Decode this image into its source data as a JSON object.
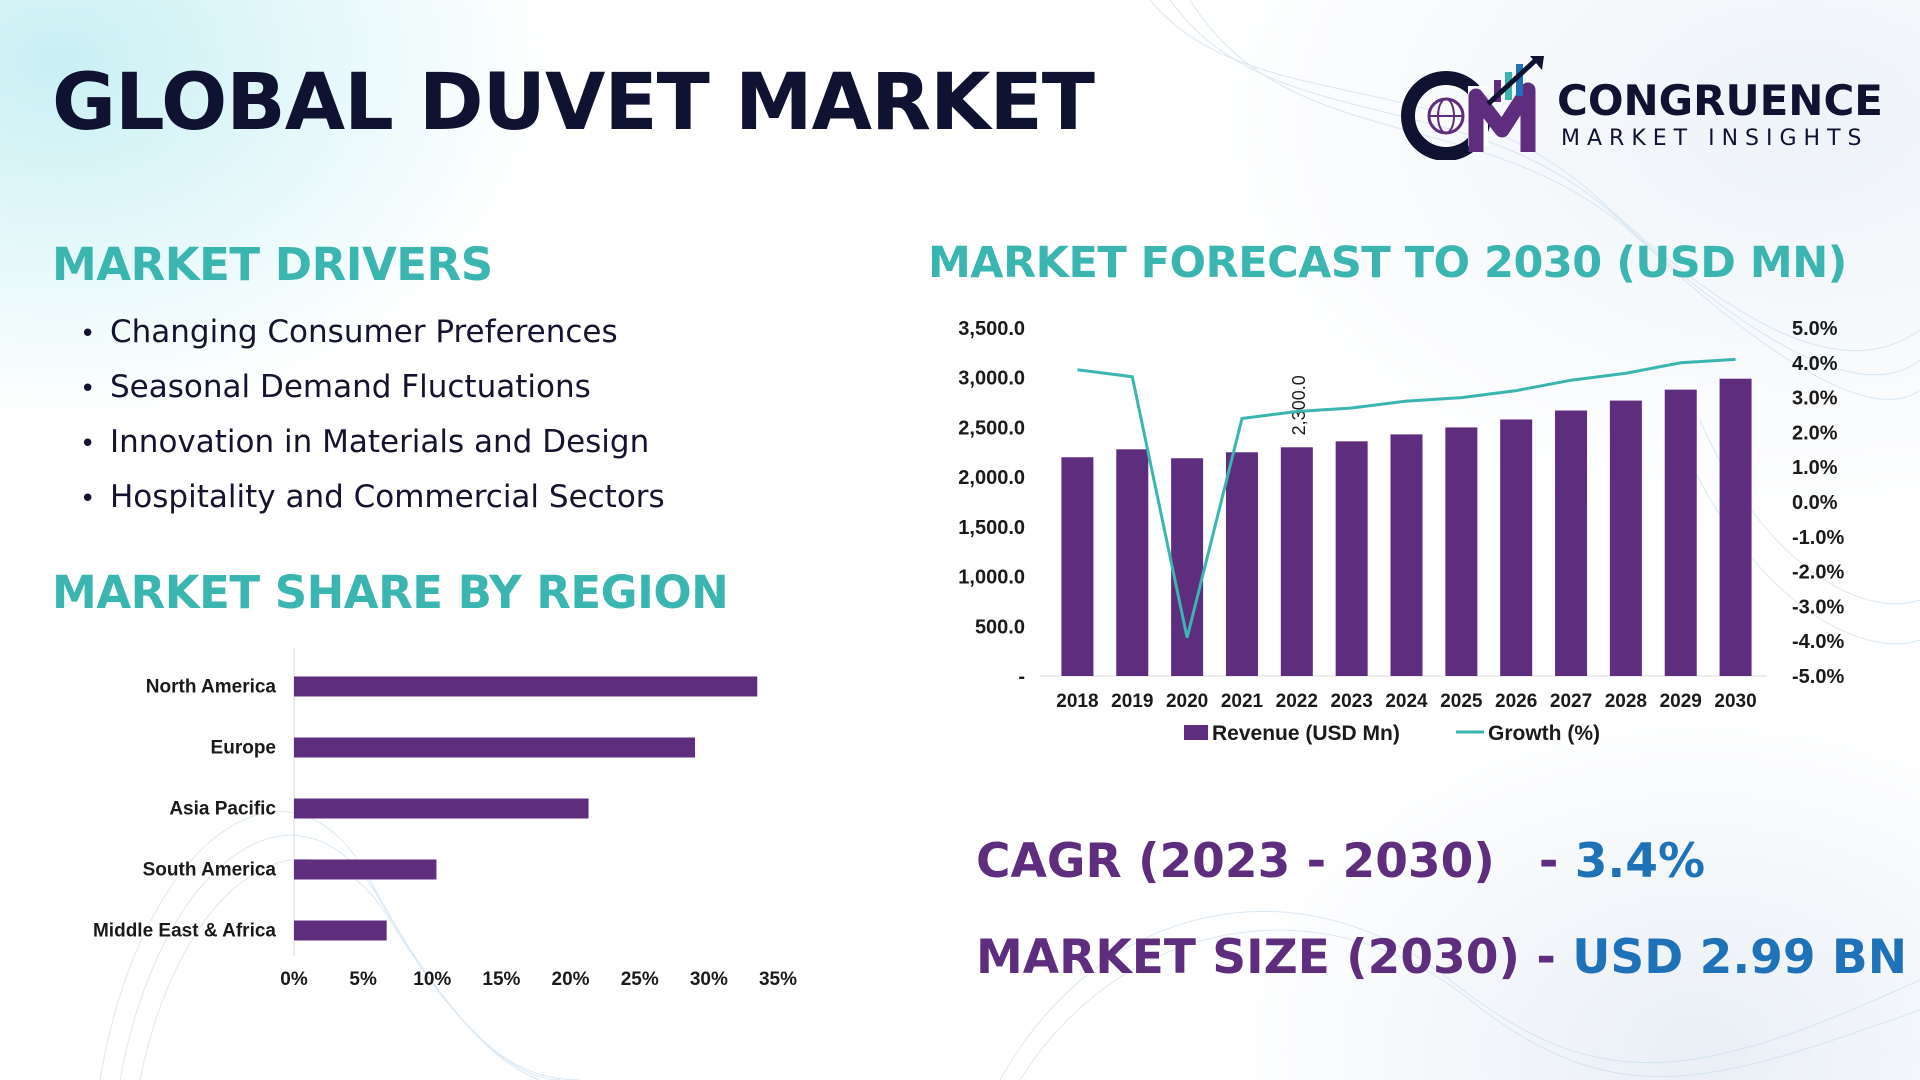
{
  "page": {
    "title": "GLOBAL DUVET MARKET",
    "colors": {
      "heading": "#3ab5b0",
      "bar": "#5e2d7d",
      "line": "#3ab5b0",
      "value": "#1f72b8"
    }
  },
  "logo": {
    "name": "CONGRUENCE",
    "subtitle": "MARKET INSIGHTS",
    "icon": "globe-chart-icon"
  },
  "drivers": {
    "heading": "MARKET DRIVERS",
    "items": [
      "Changing Consumer Preferences",
      "Seasonal Demand Fluctuations",
      "Innovation in Materials and Design",
      "Hospitality and Commercial Sectors"
    ]
  },
  "region": {
    "heading": "MARKET SHARE BY REGION"
  },
  "forecast": {
    "heading": "MARKET FORECAST TO 2030 (USD MN)"
  },
  "kpis": {
    "cagr_label": "CAGR (2023 - 2030)",
    "cagr_value": "3.4%",
    "size_label": "MARKET SIZE (2030)",
    "size_value": "USD 2.99 BN",
    "separator": "-"
  },
  "chart_data": [
    {
      "type": "bar",
      "orientation": "horizontal",
      "categories": [
        "North America",
        "Europe",
        "Asia Pacific",
        "South America",
        "Middle East & Africa"
      ],
      "values": [
        33.5,
        29,
        21.3,
        10.3,
        6.7
      ],
      "xlim": [
        0,
        35
      ],
      "x_ticks": [
        0,
        5,
        10,
        15,
        20,
        25,
        30,
        35
      ],
      "x_tick_labels": [
        "0%",
        "5%",
        "10%",
        "15%",
        "20%",
        "25%",
        "30%",
        "35%"
      ],
      "grid": false
    },
    {
      "type": "bar",
      "combo": "bar+line",
      "categories": [
        "2018",
        "2019",
        "2020",
        "2021",
        "2022",
        "2023",
        "2024",
        "2025",
        "2026",
        "2027",
        "2028",
        "2029",
        "2030"
      ],
      "series": [
        {
          "name": "Revenue (USD Mn)",
          "type": "bar",
          "axis": "left",
          "values": [
            2200,
            2280,
            2190,
            2250,
            2300,
            2360,
            2430,
            2500,
            2580,
            2670,
            2770,
            2880,
            2990
          ]
        },
        {
          "name": "Growth (%)",
          "type": "line",
          "axis": "right",
          "values": [
            3.8,
            3.6,
            -3.9,
            2.4,
            2.6,
            2.7,
            2.9,
            3.0,
            3.2,
            3.5,
            3.7,
            4.0,
            4.1
          ]
        }
      ],
      "data_labels": [
        {
          "category": "2022",
          "text": "2,300.0"
        }
      ],
      "y_left": {
        "range": [
          0,
          3500
        ],
        "ticks": [
          0,
          500,
          1000,
          1500,
          2000,
          2500,
          3000,
          3500
        ],
        "tick_labels": [
          "-",
          "500.0",
          "1,000.0",
          "1,500.0",
          "2,000.0",
          "2,500.0",
          "3,000.0",
          "3,500.0"
        ]
      },
      "y_right": {
        "range": [
          -5,
          5
        ],
        "ticks": [
          -5,
          -4,
          -3,
          -2,
          -1,
          0,
          1,
          2,
          3,
          4,
          5
        ],
        "tick_labels": [
          "-5.0%",
          "-4.0%",
          "-3.0%",
          "-2.0%",
          "-1.0%",
          "0.0%",
          "1.0%",
          "2.0%",
          "3.0%",
          "4.0%",
          "5.0%"
        ]
      },
      "legend_position": "bottom",
      "grid": false
    }
  ]
}
